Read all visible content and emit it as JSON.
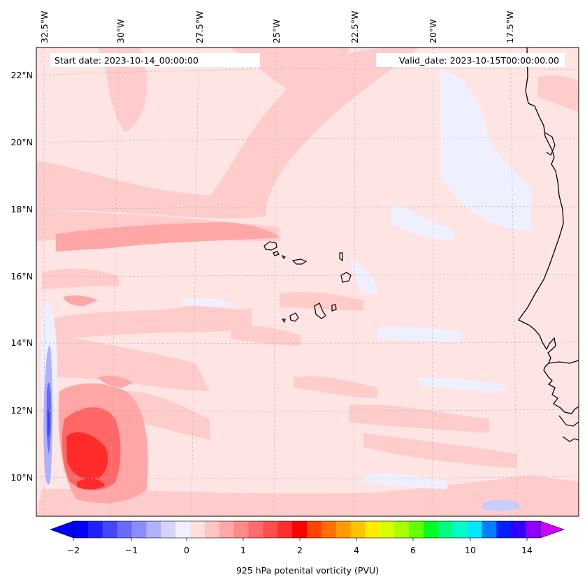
{
  "map": {
    "start_date": "Start date: 2023-10-14_00:00:00",
    "valid_date": "Valid_date: 2023-10-15T00:00:00.00",
    "lon_labels": [
      "32.5°W",
      "30°W",
      "27.5°W",
      "25°W",
      "22.5°W",
      "20°W",
      "17.5°W"
    ],
    "lat_labels": [
      "22°N",
      "20°N",
      "18°N",
      "16°N",
      "14°N",
      "12°N",
      "10°N"
    ],
    "field_name": "925 hPa potential vorticity",
    "colors": {
      "background_field": "#ffe4e4",
      "light_positive": "#ffcccc",
      "mid_positive": "#ffa6a6",
      "strong_positive": "#ff6666",
      "very_strong": "#ff2a2a",
      "light_negative": "#eef0ff",
      "mid_negative": "#8c8cff",
      "strong_negative": "#3c3cff",
      "coastline": "#000000"
    }
  },
  "colorbar": {
    "label": "925 hPa potenital vorticity (PVU)",
    "ticks": [
      "−2",
      "−1",
      "0",
      "1",
      "2",
      "4",
      "6",
      "10",
      "14"
    ],
    "colors": [
      "#0000ff",
      "#2020ff",
      "#4646ff",
      "#6a6aff",
      "#8c8cff",
      "#b0b0ff",
      "#d4d4ff",
      "#efefff",
      "#ffe0e0",
      "#ffc4c4",
      "#ffa6a6",
      "#ff8888",
      "#ff6a6a",
      "#ff4c4c",
      "#ff2e2e",
      "#ff0000",
      "#ff4400",
      "#ff7000",
      "#ff9a00",
      "#ffc400",
      "#ffee00",
      "#d8ff00",
      "#a8ff00",
      "#66ff00",
      "#00ff20",
      "#00ff80",
      "#00ffc8",
      "#00e8ff",
      "#0080ff",
      "#0020ff",
      "#3000ff",
      "#9000ff"
    ],
    "extend_min_color": "#0000ff",
    "extend_max_color": "#cc00ff"
  }
}
